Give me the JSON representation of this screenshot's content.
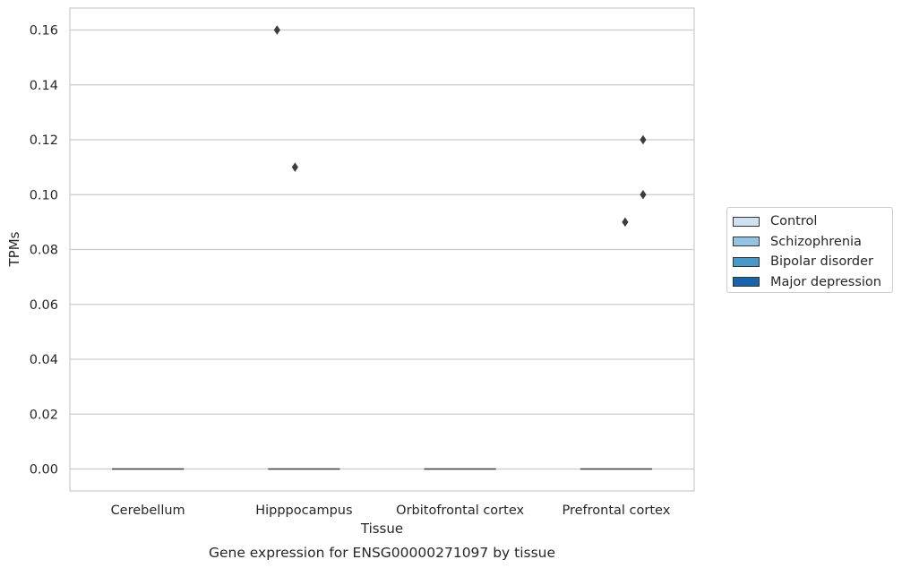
{
  "caption": "Gene expression for ENSG00000271097 by tissue",
  "chart_data": {
    "type": "box",
    "xlabel": "Tissue",
    "ylabel": "TPMs",
    "categories": [
      "Cerebellum",
      "Hipppocampus",
      "Orbitofrontal cortex",
      "Prefrontal cortex"
    ],
    "ylim": [
      -0.008,
      0.168
    ],
    "yticks": [
      0.0,
      0.02,
      0.04,
      0.06,
      0.08,
      0.1,
      0.12,
      0.14,
      0.16
    ],
    "ytick_labels": [
      "0.00",
      "0.02",
      "0.04",
      "0.06",
      "0.08",
      "0.10",
      "0.12",
      "0.14",
      "0.16"
    ],
    "grid": "horizontal",
    "legend_position": "right",
    "series": [
      {
        "name": "Control",
        "color": "#d0e1f2"
      },
      {
        "name": "Schizophrenia",
        "color": "#94c4df"
      },
      {
        "name": "Bipolar disorder",
        "color": "#4a98c9"
      },
      {
        "name": "Major depression",
        "color": "#1764ab"
      }
    ],
    "boxes": [
      {
        "category": "Cerebellum",
        "median": 0.0
      },
      {
        "category": "Hipppocampus",
        "median": 0.0
      },
      {
        "category": "Orbitofrontal cortex",
        "median": 0.0
      },
      {
        "category": "Prefrontal cortex",
        "median": 0.0
      }
    ],
    "outliers": [
      {
        "category": "Hipppocampus",
        "series": "Control",
        "value": 0.16
      },
      {
        "category": "Hipppocampus",
        "series": "Schizophrenia",
        "value": 0.11
      },
      {
        "category": "Prefrontal cortex",
        "series": "Bipolar disorder",
        "value": 0.09
      },
      {
        "category": "Prefrontal cortex",
        "series": "Major depression",
        "value": 0.12
      },
      {
        "category": "Prefrontal cortex",
        "series": "Major depression",
        "value": 0.1
      }
    ]
  }
}
